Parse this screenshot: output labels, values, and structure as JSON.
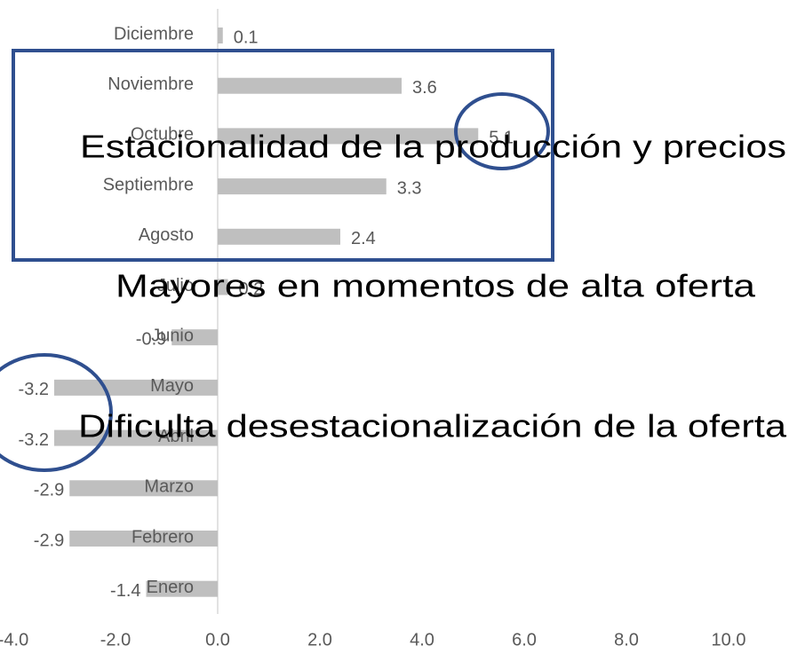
{
  "chart_data": {
    "type": "bar",
    "orientation": "horizontal",
    "categories": [
      "Enero",
      "Febrero",
      "Marzo",
      "Abril",
      "Mayo",
      "Junio",
      "Julio",
      "Agosto",
      "Septiembre",
      "Octubre",
      "Noviembre",
      "Diciembre"
    ],
    "values": [
      -1.4,
      -2.9,
      -2.9,
      -3.2,
      -3.2,
      -0.9,
      0.2,
      2.4,
      3.3,
      5.1,
      3.6,
      0.1
    ],
    "color": "#bfbfbf",
    "xlim": [
      -4,
      10
    ],
    "xticks": [
      {
        "value": -4,
        "label": "-4.0"
      },
      {
        "value": -2,
        "label": "-2.0"
      },
      {
        "value": 0,
        "label": "0.0"
      },
      {
        "value": 2,
        "label": "2.0"
      },
      {
        "value": 4,
        "label": "4.0"
      },
      {
        "value": 6,
        "label": "6.0"
      },
      {
        "value": 8,
        "label": "8.0"
      },
      {
        "value": 10,
        "label": "10.0"
      }
    ],
    "annotations": [
      "Estacionalidad de la producción y precios",
      "Mayores en momentos de alta oferta",
      "Dificulta desestacionalización de la oferta"
    ]
  }
}
